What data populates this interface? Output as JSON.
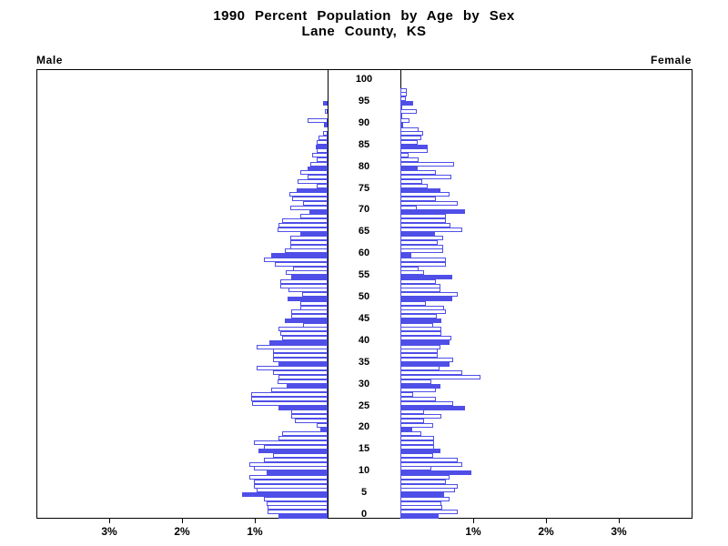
{
  "title": {
    "line1": "1990 Percent Population by Age by Sex",
    "line2": "Lane County, KS"
  },
  "side_labels": {
    "left": "Male",
    "right": "Female"
  },
  "chart_data": {
    "type": "bar",
    "subtype": "population-pyramid",
    "title": "1990 Percent Population by Age by Sex",
    "subtitle": "Lane County, KS",
    "unit": "percent of total population",
    "age_min": 0,
    "age_max": 100,
    "age_tick_interval": 5,
    "age_tick_labels": [
      "0",
      "5",
      "10",
      "15",
      "20",
      "25",
      "30",
      "35",
      "40",
      "45",
      "50",
      "55",
      "60",
      "65",
      "70",
      "75",
      "80",
      "85",
      "90",
      "95",
      "100"
    ],
    "x_axis": {
      "tick_pcts": [
        1,
        2,
        3
      ],
      "tick_labels_left": [
        "1%",
        "2%",
        "3%"
      ],
      "tick_labels_right": [
        "1%",
        "2%",
        "3%"
      ],
      "max_pct": 4
    },
    "legend_note": "bars at ages divisible by 5 are solid filled; other ages hollow outline",
    "colors": {
      "bar_outline": "#4f4fe8",
      "bar_fill_solid": "#4f4fe8",
      "bar_fill_hollow": "#ffffff",
      "axis": "#000000"
    },
    "series": [
      {
        "name": "Male",
        "side": "left",
        "ages": "index equals age 0-100",
        "values": [
          0.67,
          0.82,
          0.82,
          0.84,
          0.87,
          1.18,
          0.97,
          1.01,
          1.01,
          1.08,
          0.84,
          1.01,
          1.08,
          0.87,
          0.75,
          0.95,
          0.87,
          1.01,
          0.68,
          0.63,
          0.1,
          0.15,
          0.45,
          0.5,
          0.5,
          0.68,
          1.04,
          1.05,
          1.05,
          0.77,
          0.56,
          0.69,
          0.67,
          0.75,
          0.98,
          0.67,
          0.75,
          0.75,
          0.75,
          0.98,
          0.8,
          0.63,
          0.65,
          0.68,
          0.34,
          0.59,
          0.5,
          0.5,
          0.38,
          0.38,
          0.55,
          0.35,
          0.54,
          0.65,
          0.65,
          0.5,
          0.58,
          0.48,
          0.73,
          0.88,
          0.77,
          0.59,
          0.51,
          0.51,
          0.51,
          0.38,
          0.69,
          0.68,
          0.63,
          0.37,
          0.25,
          0.51,
          0.34,
          0.49,
          0.53,
          0.42,
          0.15,
          0.41,
          0.28,
          0.38,
          0.28,
          0.24,
          0.15,
          0.21,
          0.15,
          0.16,
          0.15,
          0.13,
          0.06,
          0,
          0.05,
          0.28,
          0,
          0.04,
          0,
          0.06,
          0,
          0,
          0,
          0,
          0
        ]
      },
      {
        "name": "Female",
        "side": "right",
        "ages": "index equals age 0-100",
        "values": [
          0.53,
          0.79,
          0.58,
          0.56,
          0.67,
          0.6,
          0.75,
          0.79,
          0.63,
          0.68,
          0.98,
          0.42,
          0.85,
          0.79,
          0.45,
          0.55,
          0.46,
          0.46,
          0.46,
          0.29,
          0.16,
          0.45,
          0.33,
          0.56,
          0.33,
          0.89,
          0.73,
          0.49,
          0.18,
          0.49,
          0.55,
          0.42,
          1.1,
          0.85,
          0.54,
          0.67,
          0.73,
          0.51,
          0.51,
          0.55,
          0.67,
          0.7,
          0.56,
          0.56,
          0.45,
          0.56,
          0.5,
          0.63,
          0.6,
          0.35,
          0.71,
          0.79,
          0.55,
          0.55,
          0.49,
          0.71,
          0.33,
          0.25,
          0.63,
          0.63,
          0.15,
          0.59,
          0.59,
          0.51,
          0.59,
          0.47,
          0.85,
          0.69,
          0.63,
          0.63,
          0.89,
          0.22,
          0.79,
          0.49,
          0.67,
          0.55,
          0.38,
          0.3,
          0.7,
          0.49,
          0.24,
          0.74,
          0.25,
          0.11,
          0.37,
          0.38,
          0.24,
          0.29,
          0.31,
          0.25,
          0.04,
          0.13,
          0.03,
          0.22,
          0.02,
          0.17,
          0.08,
          0.09,
          0.09,
          0,
          0
        ]
      }
    ]
  }
}
